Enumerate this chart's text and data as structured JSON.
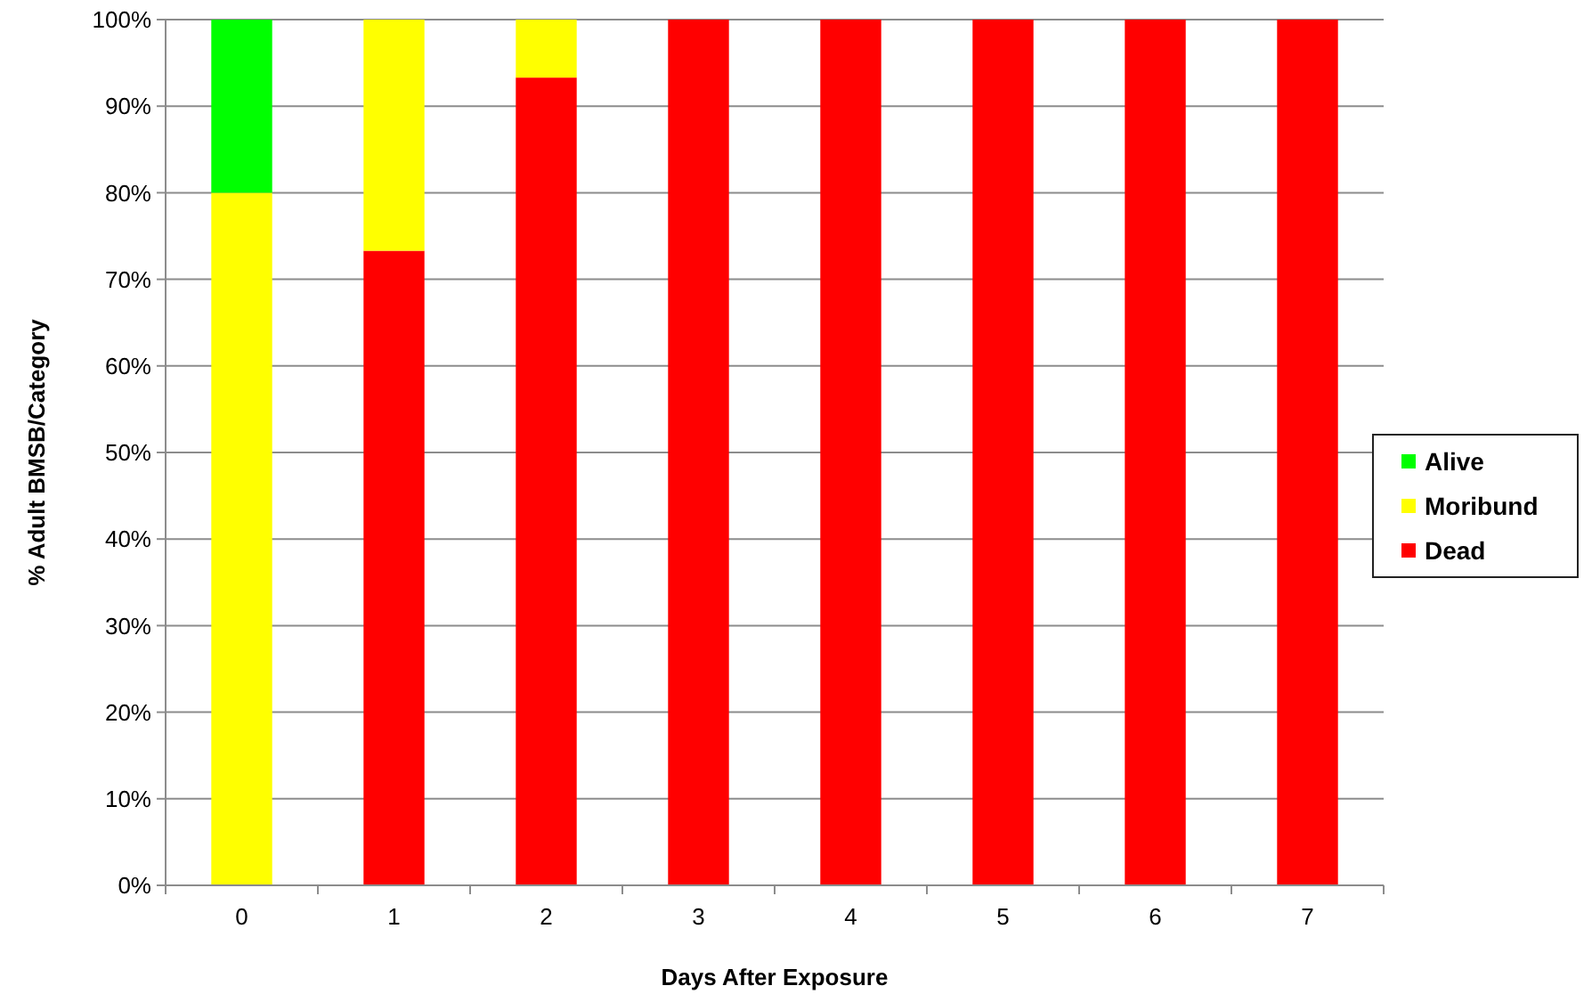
{
  "chart_data": {
    "type": "bar",
    "stacked": true,
    "xlabel": "Days After Exposure",
    "ylabel": "% Adult BMSB/Category",
    "categories": [
      "0",
      "1",
      "2",
      "3",
      "4",
      "5",
      "6",
      "7"
    ],
    "series": [
      {
        "name": "Dead",
        "color": "#ff0000",
        "values": [
          0,
          73.3,
          93.3,
          100,
          100,
          100,
          100,
          100
        ]
      },
      {
        "name": "Moribund",
        "color": "#ffff00",
        "values": [
          80,
          26.7,
          6.7,
          0,
          0,
          0,
          0,
          0
        ]
      },
      {
        "name": "Alive",
        "color": "#00ff00",
        "values": [
          20,
          0,
          0,
          0,
          0,
          0,
          0,
          0
        ]
      }
    ],
    "ylim": [
      0,
      100
    ],
    "yticks": [
      {
        "value": 0,
        "label": "0%"
      },
      {
        "value": 10,
        "label": "10%"
      },
      {
        "value": 20,
        "label": "20%"
      },
      {
        "value": 30,
        "label": "30%"
      },
      {
        "value": 40,
        "label": "40%"
      },
      {
        "value": 50,
        "label": "50%"
      },
      {
        "value": 60,
        "label": "60%"
      },
      {
        "value": 70,
        "label": "70%"
      },
      {
        "value": 80,
        "label": "80%"
      },
      {
        "value": 90,
        "label": "90%"
      },
      {
        "value": 100,
        "label": "100%"
      }
    ],
    "grid": "y",
    "legend": "right"
  }
}
